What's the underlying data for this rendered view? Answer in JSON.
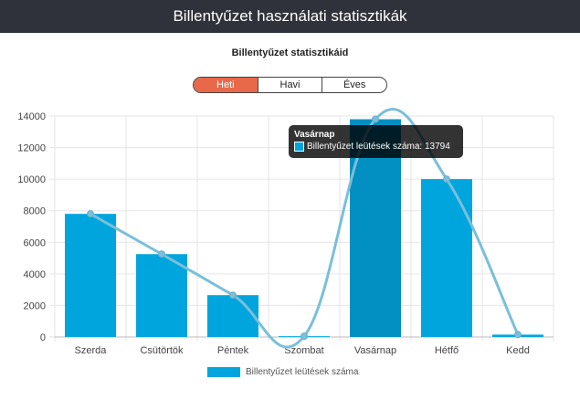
{
  "window": {
    "title": "Billentyűzet használati statisztikák"
  },
  "header": {
    "subtitle": "Billentyűzet statisztikáid"
  },
  "period_tabs": [
    {
      "label": "Heti",
      "active": true
    },
    {
      "label": "Havi",
      "active": false
    },
    {
      "label": "Éves",
      "active": false
    }
  ],
  "tooltip": {
    "title": "Vasárnap",
    "label": "Billentyűzet leütések száma: 13794",
    "color": "#00a5de"
  },
  "legend": {
    "label": "Billentyűzet leütések száma"
  },
  "colors": {
    "bar": "#00a5de",
    "bar_hover": "#0290c2",
    "line": "#7bbfda",
    "header_bg": "#2f323a",
    "active_tab": "#e8694a"
  },
  "chart_data": {
    "type": "bar",
    "categories": [
      "Szerda",
      "Csütörtök",
      "Péntek",
      "Szombat",
      "Vasárnap",
      "Hétfő",
      "Kedd"
    ],
    "series": [
      {
        "name": "Billentyűzet leütések száma",
        "values": [
          7800,
          5250,
          2650,
          50,
          13794,
          10000,
          150
        ]
      }
    ],
    "overlay_line": true,
    "ylim": [
      0,
      14000
    ],
    "yticks": [
      0,
      2000,
      4000,
      6000,
      8000,
      10000,
      12000,
      14000
    ],
    "grid": true,
    "highlighted_category": "Vasárnap",
    "legend_position": "bottom"
  }
}
